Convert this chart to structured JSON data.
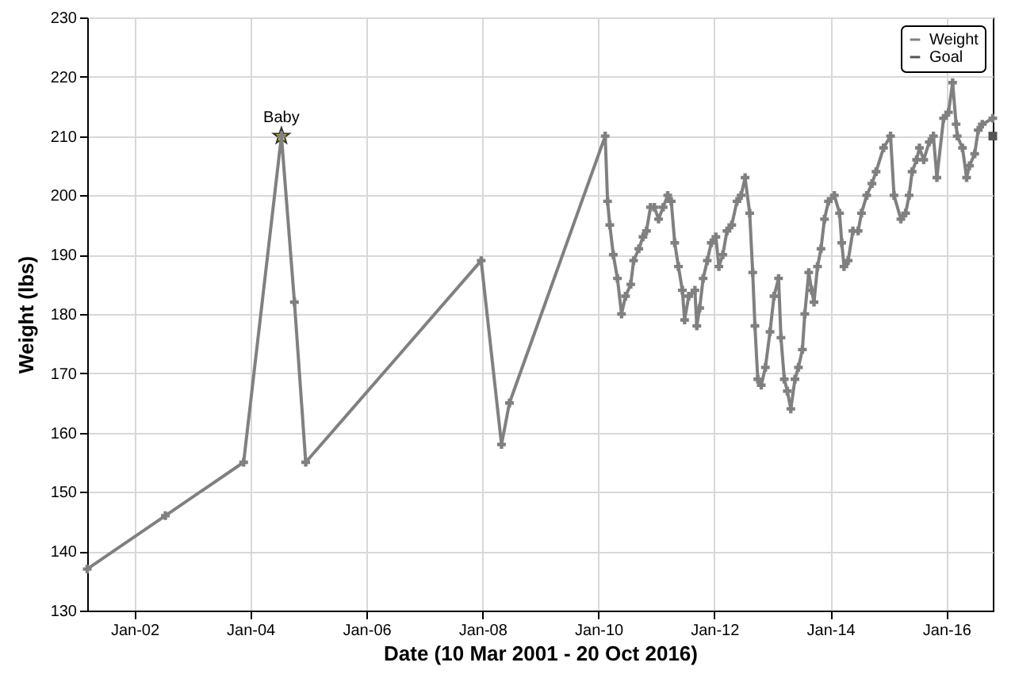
{
  "chart_data": {
    "type": "line",
    "xlabel": "Date  (10 Mar 2001 - 20 Oct 2016)",
    "ylabel": "Weight  (lbs)",
    "xlim": [
      "2001-03-10",
      "2016-10-20"
    ],
    "xticks": [
      {
        "value": "2002-01-01",
        "label": "Jan-02"
      },
      {
        "value": "2004-01-01",
        "label": "Jan-04"
      },
      {
        "value": "2006-01-01",
        "label": "Jan-06"
      },
      {
        "value": "2008-01-01",
        "label": "Jan-08"
      },
      {
        "value": "2010-01-01",
        "label": "Jan-10"
      },
      {
        "value": "2012-01-01",
        "label": "Jan-12"
      },
      {
        "value": "2014-01-01",
        "label": "Jan-14"
      },
      {
        "value": "2016-01-01",
        "label": "Jan-16"
      }
    ],
    "ylim": [
      130,
      230
    ],
    "yticks": [
      130,
      140,
      150,
      160,
      170,
      180,
      190,
      200,
      210,
      220,
      230
    ],
    "grid": true,
    "legend": "top right",
    "line_style": "solid",
    "annotations": [
      {
        "text": "Baby",
        "x": "2004-07-15",
        "y": 210
      }
    ],
    "series": [
      {
        "name": "Weight",
        "color": "#808080",
        "marker": "cross",
        "x": [
          "2001-03-10",
          "2002-07-15",
          "2003-11-20",
          "2004-07-15",
          "2004-10-05",
          "2004-12-15",
          "2007-12-25",
          "2008-05-01",
          "2008-06-20",
          "2010-02-13",
          "2010-02-28",
          "2010-03-14",
          "2010-04-05",
          "2010-05-01",
          "2010-05-27",
          "2010-06-21",
          "2010-07-24",
          "2010-08-11",
          "2010-09-13",
          "2010-10-09",
          "2010-10-31",
          "2010-11-25",
          "2010-12-20",
          "2011-01-15",
          "2011-02-13",
          "2011-03-14",
          "2011-04-05",
          "2011-04-27",
          "2011-05-20",
          "2011-06-14",
          "2011-06-28",
          "2011-07-24",
          "2011-09-01",
          "2011-09-13",
          "2011-10-01",
          "2011-10-23",
          "2011-11-18",
          "2011-12-13",
          "2012-01-11",
          "2012-01-30",
          "2012-02-24",
          "2012-03-21",
          "2012-04-20",
          "2012-05-23",
          "2012-06-18",
          "2012-07-13",
          "2012-08-11",
          "2012-08-30",
          "2012-09-13",
          "2012-10-01",
          "2012-10-23",
          "2012-11-18",
          "2012-12-17",
          "2013-01-11",
          "2013-02-09",
          "2013-02-24",
          "2013-03-17",
          "2013-04-05",
          "2013-04-27",
          "2013-05-23",
          "2013-06-14",
          "2013-07-09",
          "2013-07-24",
          "2013-08-18",
          "2013-09-05",
          "2013-09-20",
          "2013-10-12",
          "2013-11-03",
          "2013-11-25",
          "2013-12-20",
          "2014-01-26",
          "2014-02-28",
          "2014-03-14",
          "2014-03-28",
          "2014-04-23",
          "2014-05-23",
          "2014-06-25",
          "2014-07-16",
          "2014-08-18",
          "2014-09-20",
          "2014-10-16",
          "2014-12-02",
          "2015-01-15",
          "2015-02-06",
          "2015-03-21",
          "2015-04-20",
          "2015-05-12",
          "2015-05-31",
          "2015-06-28",
          "2015-07-16",
          "2015-08-12",
          "2015-09-16",
          "2015-10-12",
          "2015-11-03",
          "2015-12-15",
          "2016-01-15",
          "2016-02-10",
          "2016-03-03",
          "2016-03-10",
          "2016-04-12",
          "2016-05-08",
          "2016-05-26",
          "2016-06-28",
          "2016-07-20",
          "2016-08-15",
          "2016-10-20"
        ],
        "values": [
          137,
          146,
          155,
          210,
          182,
          155,
          189,
          158,
          165,
          210,
          199,
          195,
          190,
          186,
          180,
          183,
          185,
          189,
          191,
          193,
          194,
          198,
          198,
          196,
          198,
          200,
          199,
          192,
          188,
          184,
          179,
          183,
          184,
          178,
          181,
          186,
          189,
          192,
          193,
          188,
          190,
          194,
          195,
          199,
          200,
          203,
          197,
          187,
          178,
          169,
          168,
          171,
          177,
          183,
          186,
          176,
          169,
          167,
          164,
          169,
          171,
          174,
          180,
          187,
          184,
          182,
          188,
          191,
          196,
          199,
          200,
          197,
          192,
          188,
          189,
          194,
          194,
          197,
          200,
          202,
          204,
          208,
          210,
          200,
          196,
          197,
          200,
          204,
          206,
          208,
          206,
          209,
          210,
          203,
          213,
          214,
          219,
          212,
          210,
          208,
          203,
          205,
          207,
          211,
          212,
          213
        ]
      },
      {
        "name": "Goal",
        "color": "#555555",
        "marker": "square",
        "x": [
          "2016-10-20"
        ],
        "values": [
          210
        ]
      }
    ]
  }
}
